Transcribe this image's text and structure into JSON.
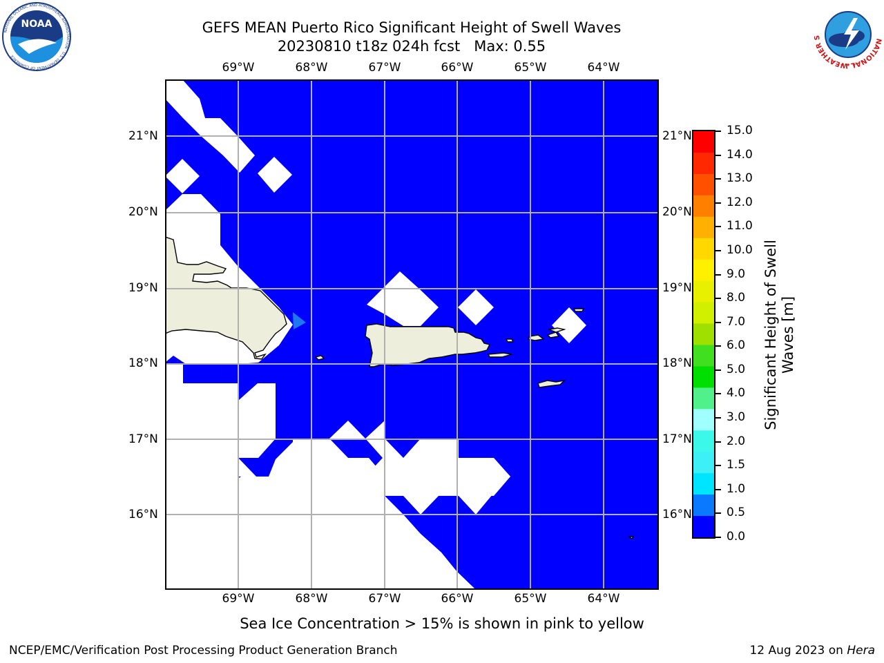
{
  "header": {
    "title_line1": "GEFS MEAN Puerto Rico Significant Height of Swell Waves",
    "title_line2": "20230810 t18z 024h fcst   Max: 0.55"
  },
  "logos": {
    "noaa_text": "NOAA",
    "noaa_ring": "NATIONAL OCEANIC AND ATMOSPHERIC ADMINISTRATION · U.S. DEPARTMENT OF COMMERCE",
    "nws_ring": "NATIONAL WEATHER SERVICE"
  },
  "map": {
    "lon_labels": [
      "69°W",
      "68°W",
      "67°W",
      "66°W",
      "65°W",
      "64°W"
    ],
    "lat_labels": [
      "21°N",
      "20°N",
      "19°N",
      "18°N",
      "17°N",
      "16°N"
    ],
    "lon_values": [
      -69,
      -68,
      -67,
      -66,
      -65,
      -64
    ],
    "lat_values": [
      21,
      20,
      19,
      18,
      17,
      16
    ],
    "lon_range": [
      -70.0,
      -63.25
    ],
    "lat_range": [
      15.0,
      21.75
    ],
    "field_value_range_m": [
      0.0,
      0.55
    ],
    "colors": {
      "ocean_low": "#0000fe",
      "ocean_mid": "#1e78f0",
      "land": "#eeeedd",
      "grid": "#b0b0b0"
    }
  },
  "colorbar": {
    "label_line1": "Significant Height of Swell",
    "label_line2": "Waves [m]",
    "ticks": [
      "0.0",
      "0.5",
      "1.0",
      "1.5",
      "2.0",
      "3.0",
      "4.0",
      "5.0",
      "6.0",
      "7.0",
      "8.0",
      "9.0",
      "10.0",
      "11.0",
      "12.0",
      "13.0",
      "14.0",
      "15.0"
    ],
    "colors": [
      "#0000ff",
      "#0a78ff",
      "#00e5ff",
      "#3cf0f5",
      "#3cf8e8",
      "#a0ffff",
      "#50f08a",
      "#00e000",
      "#40e020",
      "#a0e000",
      "#d0f000",
      "#e8f000",
      "#fff000",
      "#ffd800",
      "#ffb000",
      "#ff8000",
      "#ff5000",
      "#ff2800",
      "#ff0000"
    ]
  },
  "note": "Sea Ice Concentration > 15% is shown in pink to yellow",
  "footer": {
    "left": "NCEP/EMC/Verification Post Processing Product Generation Branch",
    "right_prefix": "12 Aug 2023 on ",
    "right_host": "Hera"
  }
}
